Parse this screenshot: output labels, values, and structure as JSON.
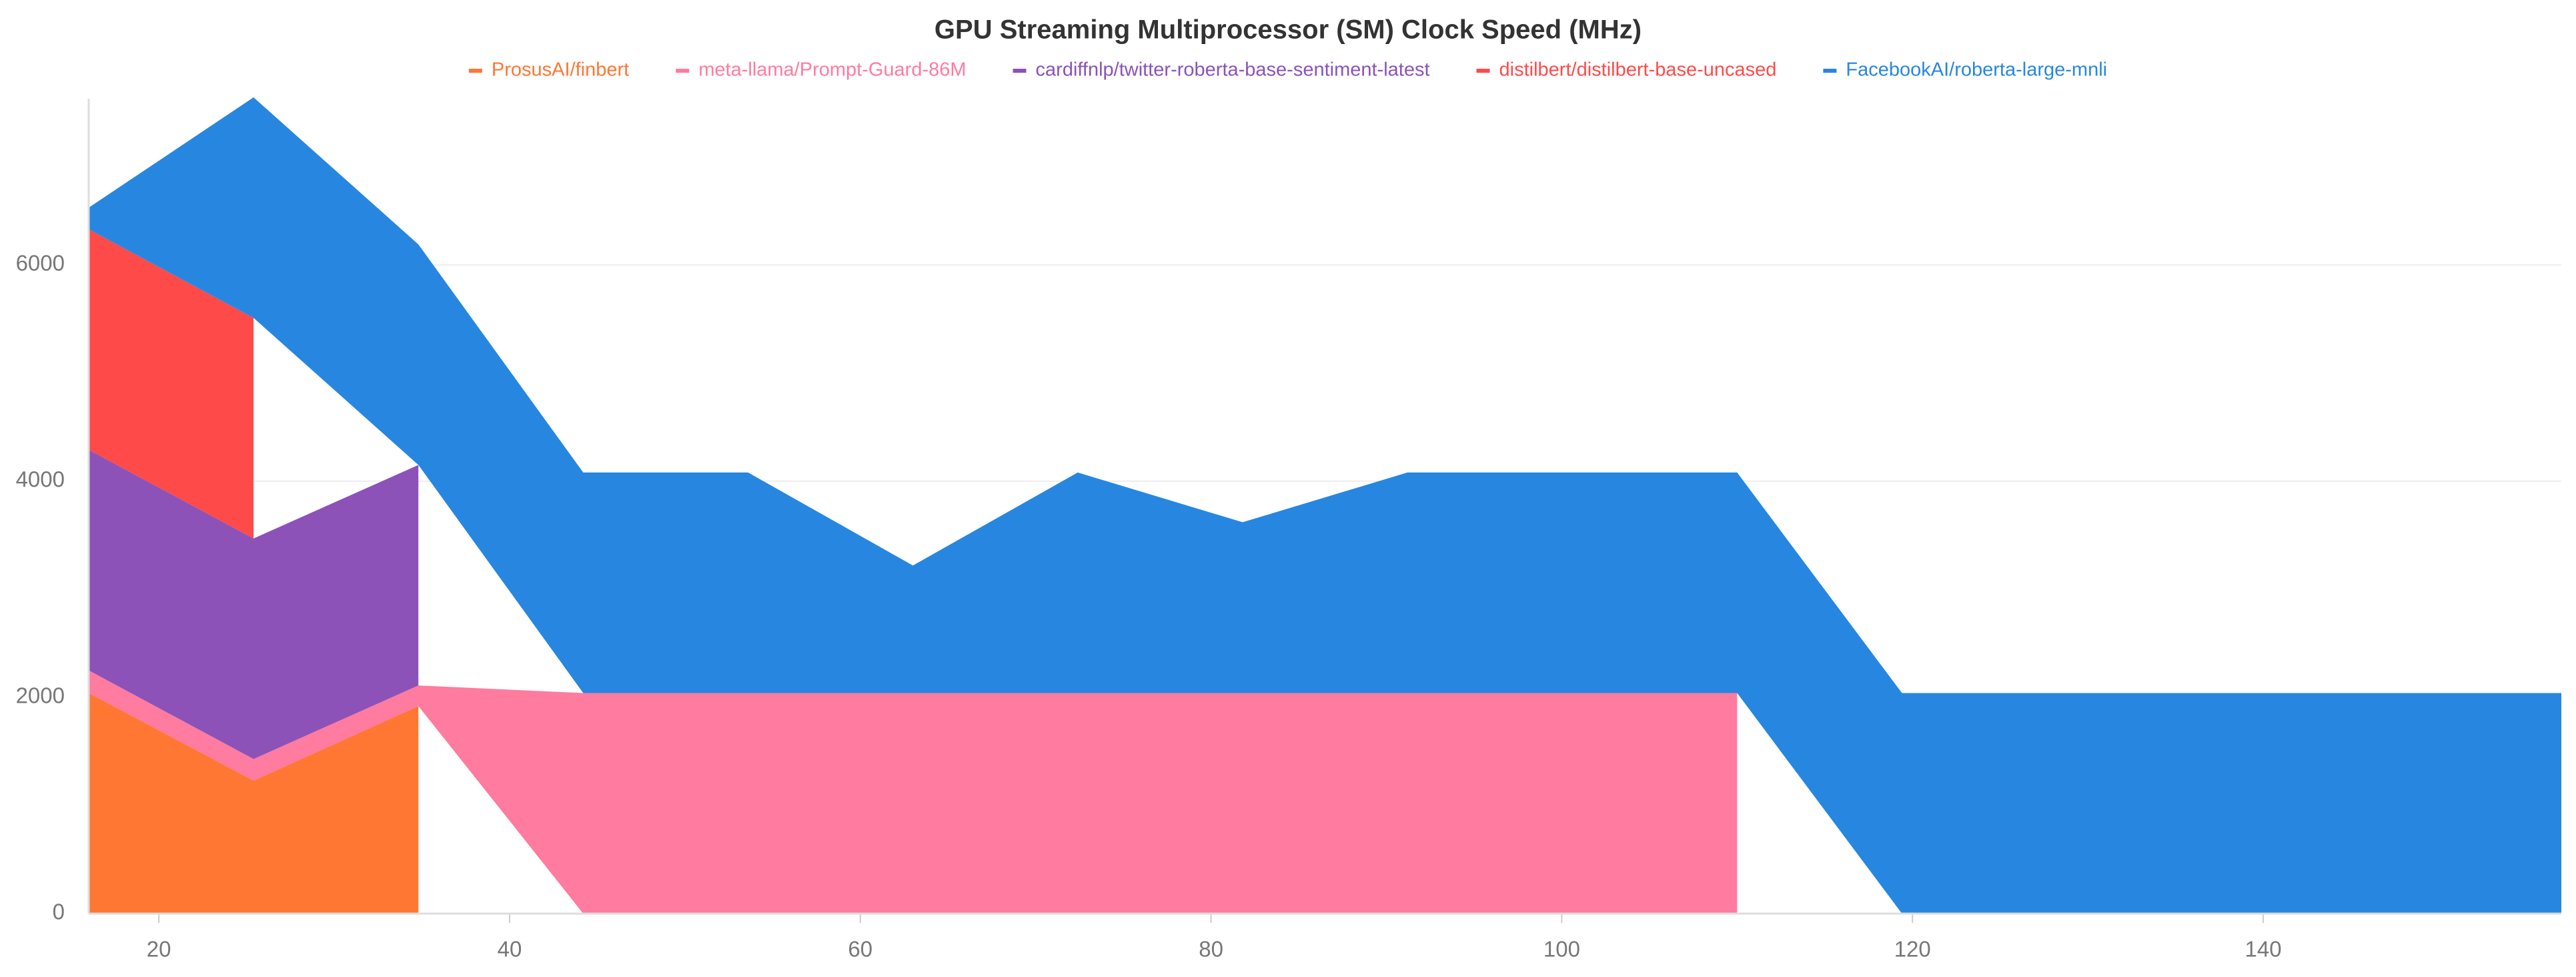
{
  "chart_data": {
    "type": "stacked-area",
    "title": "GPU Streaming Multiprocessor (SM) Clock Speed (MHz)",
    "x": [
      16,
      25.4,
      34.8,
      44.2,
      53.6,
      63,
      72.4,
      81.8,
      91.2,
      100.6,
      110,
      119.4,
      128.8,
      138.2,
      147.6,
      157
    ],
    "series": [
      {
        "name": "ProsusAI/finbert",
        "color": "#ff7733",
        "values": [
          2040,
          1230,
          1920,
          null,
          null,
          null,
          null,
          null,
          null,
          null,
          null,
          null,
          null,
          null,
          null,
          null
        ]
      },
      {
        "name": "meta-llama/Prompt-Guard-86M",
        "color": "#ff7ba0",
        "values": [
          210,
          200,
          190,
          2040,
          2040,
          2040,
          2040,
          2040,
          2040,
          2040,
          2040,
          null,
          null,
          null,
          null,
          null
        ]
      },
      {
        "name": "cardiffnlp/twitter-roberta-base-sentiment-latest",
        "color": "#8c52b8",
        "values": [
          2040,
          2040,
          2040,
          null,
          null,
          null,
          null,
          null,
          null,
          null,
          null,
          null,
          null,
          null,
          null,
          null
        ]
      },
      {
        "name": "distilbert/distilbert-base-uncased",
        "color": "#ff4a4a",
        "values": [
          2040,
          2040,
          null,
          null,
          null,
          null,
          null,
          null,
          null,
          null,
          null,
          null,
          null,
          null,
          null,
          null
        ]
      },
      {
        "name": "FacebookAI/roberta-large-mnli",
        "color": "#2787e0",
        "values": [
          200,
          2040,
          2040,
          2040,
          2040,
          1180,
          2040,
          1580,
          2040,
          2040,
          2040,
          2040,
          2040,
          2040,
          2040,
          2040
        ]
      }
    ],
    "xlim": [
      16,
      157
    ],
    "ylim": [
      0,
      7500
    ],
    "xticks": [
      20,
      40,
      60,
      80,
      100,
      120,
      140
    ],
    "yticks": [
      0,
      2000,
      4000,
      6000
    ],
    "grid": true,
    "legend": "top"
  }
}
